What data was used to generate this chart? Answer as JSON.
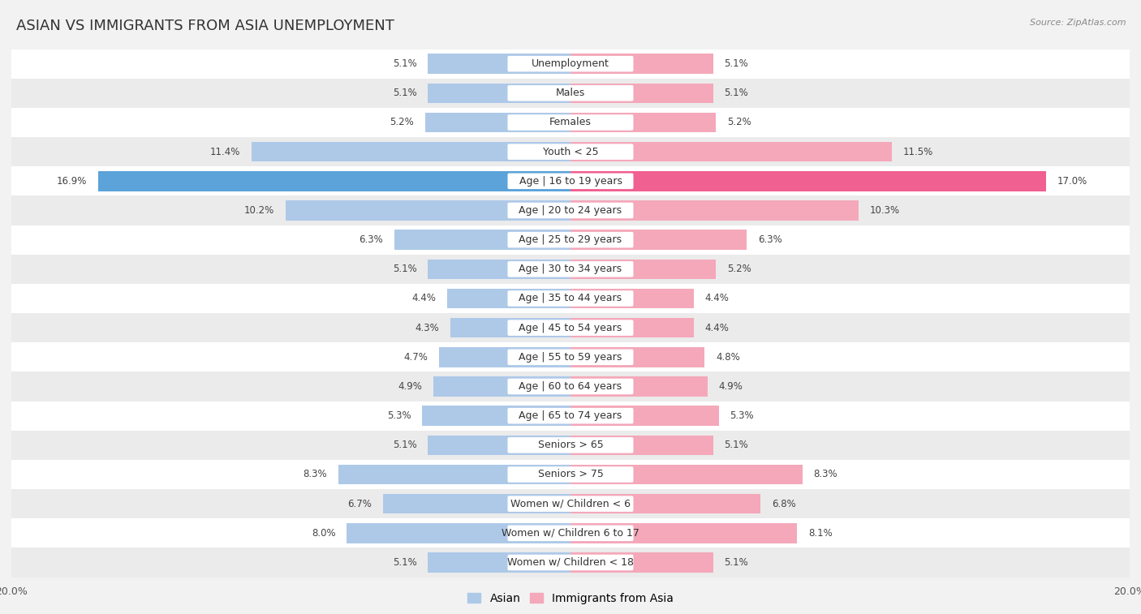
{
  "title": "ASIAN VS IMMIGRANTS FROM ASIA UNEMPLOYMENT",
  "source": "Source: ZipAtlas.com",
  "categories": [
    "Unemployment",
    "Males",
    "Females",
    "Youth < 25",
    "Age | 16 to 19 years",
    "Age | 20 to 24 years",
    "Age | 25 to 29 years",
    "Age | 30 to 34 years",
    "Age | 35 to 44 years",
    "Age | 45 to 54 years",
    "Age | 55 to 59 years",
    "Age | 60 to 64 years",
    "Age | 65 to 74 years",
    "Seniors > 65",
    "Seniors > 75",
    "Women w/ Children < 6",
    "Women w/ Children 6 to 17",
    "Women w/ Children < 18"
  ],
  "asian_values": [
    5.1,
    5.1,
    5.2,
    11.4,
    16.9,
    10.2,
    6.3,
    5.1,
    4.4,
    4.3,
    4.7,
    4.9,
    5.3,
    5.1,
    8.3,
    6.7,
    8.0,
    5.1
  ],
  "immigrant_values": [
    5.1,
    5.1,
    5.2,
    11.5,
    17.0,
    10.3,
    6.3,
    5.2,
    4.4,
    4.4,
    4.8,
    4.9,
    5.3,
    5.1,
    8.3,
    6.8,
    8.1,
    5.1
  ],
  "asian_color": "#aec9e8",
  "immigrant_color": "#f4a8ba",
  "highlight_asian_color": "#5ba3d9",
  "highlight_immigrant_color": "#f06090",
  "axis_max": 20.0,
  "background_color": "#f2f2f2",
  "row_white_color": "#ffffff",
  "row_light_color": "#ebebeb",
  "title_fontsize": 13,
  "label_fontsize": 9,
  "value_fontsize": 8.5,
  "legend_fontsize": 10
}
